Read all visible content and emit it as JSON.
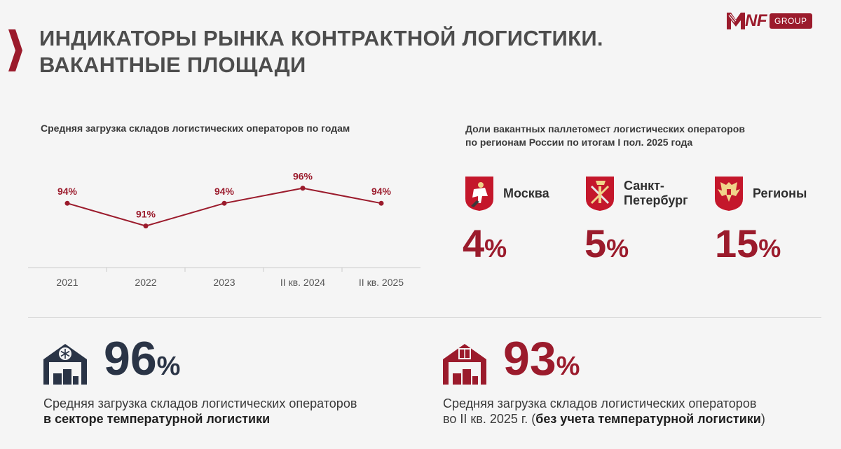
{
  "header": {
    "title_line1": "ИНДИКАТОРЫ РЫНКА КОНТРАКТНОЙ ЛОГИСТИКИ.",
    "title_line2": "ВАКАНТНЫЕ ПЛОЩАДИ",
    "logo_text": "NF",
    "logo_group": "GROUP"
  },
  "chart_data": {
    "type": "line",
    "title": "Средняя загрузка складов логистических операторов по годам",
    "categories": [
      "2021",
      "2022",
      "2023",
      "II кв. 2024",
      "II кв. 2025"
    ],
    "values": [
      94,
      91,
      94,
      96,
      94
    ],
    "labels": [
      "94%",
      "91%",
      "94%",
      "96%",
      "94%"
    ],
    "xlabel": "",
    "ylabel": "",
    "ylim": [
      88,
      98
    ],
    "color": "#9b1b2c"
  },
  "regions": {
    "title_line1": "Доли вакантных паллетомест логистических операторов",
    "title_line2": "по регионам России по итогам I пол. 2025 года",
    "items": [
      {
        "name_line1": "Москва",
        "name_line2": "",
        "value": "4",
        "unit": "%",
        "coat": "moscow-coat-icon"
      },
      {
        "name_line1": "Санкт-",
        "name_line2": "Петербург",
        "value": "5",
        "unit": "%",
        "coat": "spb-coat-icon"
      },
      {
        "name_line1": "Регионы",
        "name_line2": "",
        "value": "15",
        "unit": "%",
        "coat": "russia-coat-icon"
      }
    ]
  },
  "stats": [
    {
      "value": "96",
      "unit": "%",
      "desc_line1": "Средняя загрузка складов логистических операторов",
      "desc_bold": "в секторе температурной логистики",
      "icon": "warehouse-snowflake-icon",
      "color": "#2a3446"
    },
    {
      "value": "93",
      "unit": "%",
      "desc_line1": "Средняя загрузка складов логистических операторов",
      "desc_pre": "во II кв. 2025 г. (",
      "desc_bold": "без учета температурной логистики",
      "desc_post": ")",
      "icon": "warehouse-box-icon",
      "color": "#9b1b2c"
    }
  ]
}
